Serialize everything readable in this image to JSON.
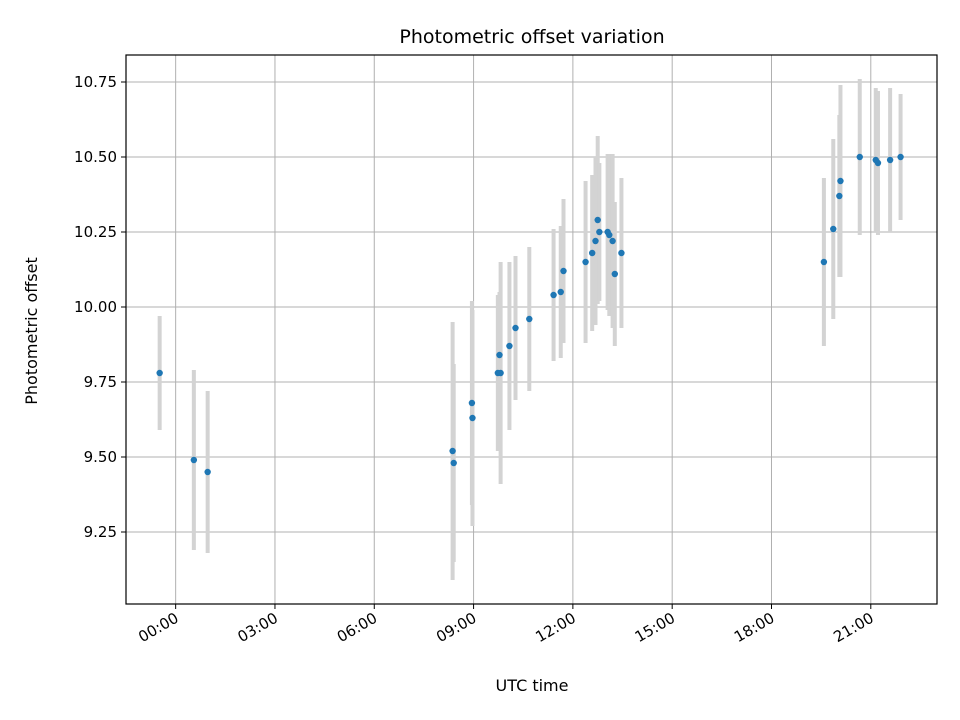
{
  "chart_data": {
    "type": "scatter",
    "title": "Photometric offset variation",
    "xlabel": "UTC time",
    "ylabel": "Photometric offset",
    "x_axis_kind": "time-of-day",
    "xlim": [
      "-01:30",
      "23:00"
    ],
    "ylim": [
      9.01,
      10.84
    ],
    "x_ticks": [
      "00:00",
      "03:00",
      "06:00",
      "09:00",
      "12:00",
      "15:00",
      "18:00",
      "21:00"
    ],
    "y_ticks": [
      "9.25",
      "9.50",
      "9.75",
      "10.00",
      "10.25",
      "10.50",
      "10.75"
    ],
    "grid": true,
    "colors": {
      "point": "#1f77b4",
      "errorbar": "#d3d3d3",
      "grid": "#b0b0b0",
      "axes": "#000000"
    },
    "series": [
      {
        "points": [
          {
            "x": "-00:29",
            "y": 9.78,
            "err": 0.19
          },
          {
            "x": "00:33",
            "y": 9.49,
            "err": 0.3
          },
          {
            "x": "00:58",
            "y": 9.45,
            "err": 0.27
          },
          {
            "x": "08:22",
            "y": 9.52,
            "err": 0.43
          },
          {
            "x": "08:24",
            "y": 9.48,
            "err": 0.33
          },
          {
            "x": "08:57",
            "y": 9.68,
            "err": 0.34
          },
          {
            "x": "08:58",
            "y": 9.63,
            "err": 0.36
          },
          {
            "x": "09:44",
            "y": 9.78,
            "err": 0.26
          },
          {
            "x": "09:47",
            "y": 9.84,
            "err": 0.21
          },
          {
            "x": "09:49",
            "y": 9.78,
            "err": 0.37
          },
          {
            "x": "10:05",
            "y": 9.87,
            "err": 0.28
          },
          {
            "x": "10:16",
            "y": 9.93,
            "err": 0.24
          },
          {
            "x": "10:41",
            "y": 9.96,
            "err": 0.24
          },
          {
            "x": "11:25",
            "y": 10.04,
            "err": 0.22
          },
          {
            "x": "11:38",
            "y": 10.05,
            "err": 0.22
          },
          {
            "x": "11:43",
            "y": 10.12,
            "err": 0.24
          },
          {
            "x": "12:23",
            "y": 10.15,
            "err": 0.27
          },
          {
            "x": "12:35",
            "y": 10.18,
            "err": 0.26
          },
          {
            "x": "12:41",
            "y": 10.22,
            "err": 0.28
          },
          {
            "x": "12:45",
            "y": 10.29,
            "err": 0.28
          },
          {
            "x": "12:48",
            "y": 10.25,
            "err": 0.23
          },
          {
            "x": "13:03",
            "y": 10.25,
            "err": 0.26
          },
          {
            "x": "13:06",
            "y": 10.24,
            "err": 0.27
          },
          {
            "x": "13:12",
            "y": 10.22,
            "err": 0.29
          },
          {
            "x": "13:16",
            "y": 10.11,
            "err": 0.24
          },
          {
            "x": "13:28",
            "y": 10.18,
            "err": 0.25
          },
          {
            "x": "19:35",
            "y": 10.15,
            "err": 0.28
          },
          {
            "x": "19:52",
            "y": 10.26,
            "err": 0.3
          },
          {
            "x": "20:03",
            "y": 10.37,
            "err": 0.27
          },
          {
            "x": "20:05",
            "y": 10.42,
            "err": 0.32
          },
          {
            "x": "20:40",
            "y": 10.5,
            "err": 0.26
          },
          {
            "x": "21:09",
            "y": 10.49,
            "err": 0.24
          },
          {
            "x": "21:13",
            "y": 10.48,
            "err": 0.24
          },
          {
            "x": "21:35",
            "y": 10.49,
            "err": 0.24
          },
          {
            "x": "21:54",
            "y": 10.5,
            "err": 0.21
          }
        ]
      }
    ]
  }
}
